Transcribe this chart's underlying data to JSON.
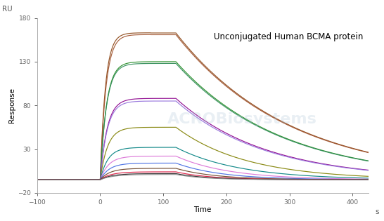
{
  "title": "Unconjugated Human BCMA protein",
  "xlabel": "Time",
  "ylabel": "Response",
  "ru_label": "RU",
  "s_label": "s",
  "xlim": [
    -100,
    425
  ],
  "ylim": [
    -20,
    180
  ],
  "xticks": [
    -100,
    0,
    100,
    200,
    300,
    400
  ],
  "yticks": [
    -20,
    30,
    80,
    130,
    180
  ],
  "association_start": 0,
  "association_end": 120,
  "dissociation_end": 425,
  "baseline_start": -100,
  "baseline_y": -5,
  "curves": [
    {
      "peak": 163,
      "color": "#8B4513",
      "kon": 0.12,
      "koff": 0.0055,
      "flat": true
    },
    {
      "peak": 161,
      "color": "#A0522D",
      "kon": 0.11,
      "koff": 0.0055,
      "flat": true
    },
    {
      "peak": 130,
      "color": "#228B22",
      "kon": 0.1,
      "koff": 0.006,
      "flat": false
    },
    {
      "peak": 128,
      "color": "#2E8B57",
      "kon": 0.1,
      "koff": 0.006,
      "flat": false
    },
    {
      "peak": 88,
      "color": "#8B008B",
      "kon": 0.09,
      "koff": 0.007,
      "flat": false
    },
    {
      "peak": 85,
      "color": "#9370DB",
      "kon": 0.09,
      "koff": 0.007,
      "flat": false
    },
    {
      "peak": 55,
      "color": "#808000",
      "kon": 0.085,
      "koff": 0.009,
      "flat": false
    },
    {
      "peak": 32,
      "color": "#008080",
      "kon": 0.08,
      "koff": 0.01,
      "flat": false
    },
    {
      "peak": 22,
      "color": "#DA70D6",
      "kon": 0.075,
      "koff": 0.012,
      "flat": false
    },
    {
      "peak": 14,
      "color": "#4169E1",
      "kon": 0.07,
      "koff": 0.014,
      "flat": false
    },
    {
      "peak": 8,
      "color": "#6B4226",
      "kon": 0.065,
      "koff": 0.016,
      "flat": false
    },
    {
      "peak": 4,
      "color": "#DC143C",
      "kon": 0.06,
      "koff": 0.018,
      "flat": false
    },
    {
      "peak": 2,
      "color": "#222222",
      "kon": 0.055,
      "koff": 0.02,
      "flat": false
    },
    {
      "peak": 1,
      "color": "#888888",
      "kon": 0.05,
      "koff": 0.022,
      "flat": false
    }
  ],
  "watermark_text": "ACROBiosystems",
  "watermark_color": "#b0c8d8",
  "watermark_alpha": 0.28,
  "bg_color": "#ffffff",
  "axis_color": "#aaaaaa",
  "tick_color": "#666666",
  "label_fontsize": 7.5,
  "tick_fontsize": 6.5,
  "title_fontsize": 8.5,
  "linewidth": 0.85
}
